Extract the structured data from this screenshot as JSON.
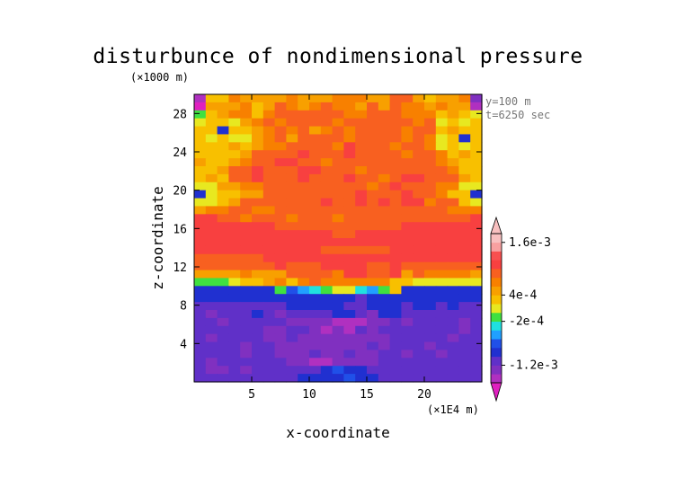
{
  "chart_data": {
    "type": "heatmap",
    "title": "disturbunce of nondimensional pressure",
    "xlabel": "x-coordinate",
    "ylabel": "z-coordinate",
    "x_unit": "(×1E4 m)",
    "y_unit": "(×1000 m)",
    "xlim": [
      0,
      25
    ],
    "ylim": [
      0,
      30
    ],
    "x_ticks": [
      5,
      10,
      15,
      20
    ],
    "y_ticks": [
      4,
      8,
      12,
      16,
      20,
      24,
      28
    ],
    "annotations": [
      "y=100 m",
      "t=6250 sec"
    ],
    "colorbar": {
      "labels": [
        {
          "text": "1.6e-3",
          "value": 0.0016
        },
        {
          "text": "4e-4",
          "value": 0.0004
        },
        {
          "text": "-2e-4",
          "value": -0.0002
        },
        {
          "text": "-1.2e-3",
          "value": -0.0012
        }
      ],
      "levels": [
        -0.0016,
        -0.0014,
        -0.0012,
        -0.001,
        -0.0008,
        -0.0006,
        -0.0004,
        -0.0002,
        0,
        0.0002,
        0.0004,
        0.0006,
        0.0008,
        0.001,
        0.0012,
        0.0014,
        0.0016,
        0.0018
      ],
      "colors": [
        "#e020c0",
        "#b030c0",
        "#8030c0",
        "#6030c8",
        "#2030d0",
        "#2050e8",
        "#20a0ff",
        "#20e0e0",
        "#40e040",
        "#e8e820",
        "#f8c000",
        "#f8a000",
        "#f88000",
        "#f86020",
        "#f84040",
        "#f85050",
        "#f8a0a0",
        "#f8c0c0"
      ]
    },
    "field_rows_top_to_bottom": [
      "2KKMLLLLMLLLMMMLLNNLKLLM3",
      "1LLLMKLNMLMNMMLNLNMMLMLL2",
      "IKLMMKMNNNNNNMMNNNMMMKLKJ",
      "JKKJLMNMNNNNMNNNNNNMNJKJK",
      "KK5KKLMNMNLMNMNNNNMNNKLKK",
      "KJKJJLMNLNNNNMNNNNMNMJK5K",
      "KKKLKLMMNNNNMONNNMNNMJKJK",
      "KKKKLNNNNONNNONNNNMNNMKLK",
      "LKKLMNNOONNMNNNNNNNNNMLKK",
      "KKLNNONNNOONNNMNNNNNNNMKK",
      "KLKNNONNNONNNONNMNOONNNLK",
      "JJLLMMNNNNNNNNNMNONNNMMJJ",
      "5JKKLLNNNNNNNNONNNONNMKK5",
      "JJKLNNNNNNNONNONONOOMNNKJ",
      "LMMNNMMNNNNNNNNNNNNNNNMMM",
      "OONNMNNNMNNNMNNNNNNNNNNNO",
      "OOOOOOONNNNNNNNNNNOOOOOOO",
      "OOOOOOOOOOOONNOOOOOOOOOOO",
      "OOOOOOOOOOOOOOOOOOOOOOOOO",
      "OOOOOOOOOOONNNNNNOOOOOOOO",
      "NNNNNNOOOOOOOOOOOOOOOOOOO",
      "NNNNNNNONNNOOOONNONNNNNNN",
      "LLLLMLLLNNNNMOONNOLNMMMML",
      "IIIJKKLMKMNMMMMMMKKJJJJJJ",
      "EEEEEEEIFGHIJJHGIKEEEEEEE",
      "EEEEEEEEEEEEEEDEEEEEEEEEE",
      "DDDDDDDDEEEEEDDEEEDEEDEDD",
      "DCDDDEDCDDDDEEDCEEDDDDDDD",
      "DDCDDDDDCCCCBBBCCDCDDDDCD",
      "DDDDDDCCDDCBCBDCDDDDDDDCD",
      "DCDDDDCCDCCCCCCCCDDDDDCDD",
      "DDDDCDDCCCCCCCCDCDDDCDDDD",
      "DDDDCDDCCCDCCDCCDDCDDCDDD",
      "DCDDDDDDCCBBCCCCDDDDDDDDD",
      "DCCDCDDDDDDEFEEDDDDDDDDDD",
      "DDDDDDDDDEEEEFEEDDDDDDDDD"
    ]
  }
}
